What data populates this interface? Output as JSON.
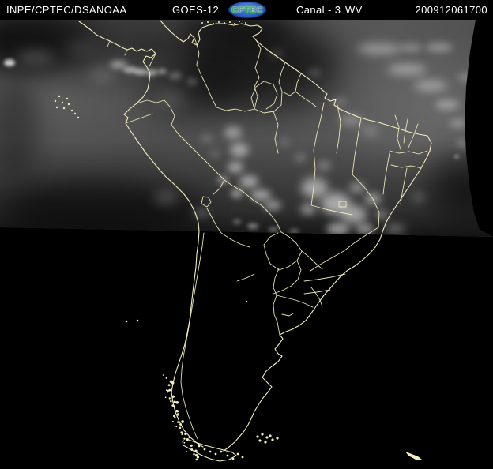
{
  "header": {
    "agency": "INPE/CPTEC/DSA",
    "organization": "NOAA",
    "satellite": "GOES-12",
    "logo_text": "CPTEC",
    "channel_label": "Canal - 3",
    "channel_type": "WV",
    "datetime_code": "200912061700"
  },
  "colors": {
    "header_background": "#000000",
    "header_text": "#ffffff",
    "logo_background": "#2e5fc6",
    "logo_text_color": "#2eb53a",
    "map_contour": "#f2eebc",
    "island_dot_white": "#e8e8e8",
    "night_background": "#000000",
    "day_base_gray": "#4f4f4f"
  }
}
